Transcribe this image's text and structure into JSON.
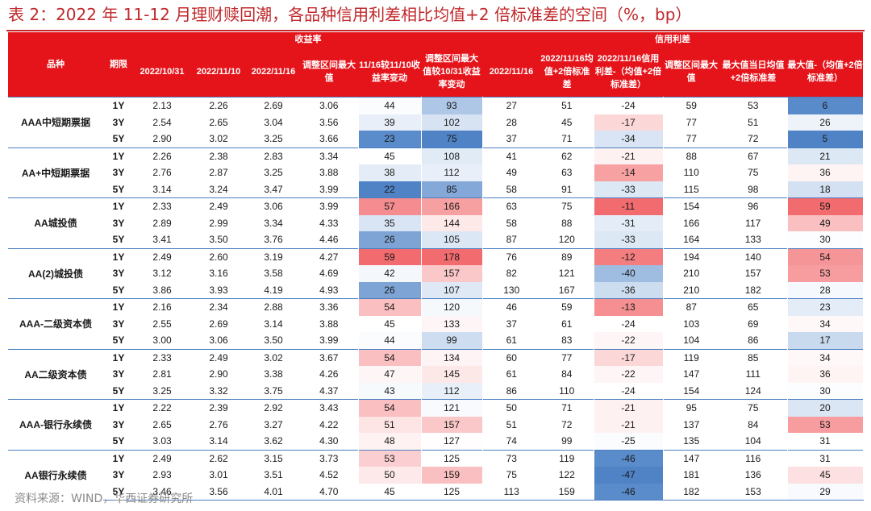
{
  "title": "表 2：2022 年 11-12 月理财赎回潮，各品种信用利差相比均值+2 倍标准差的空间（%，bp）",
  "source": "资料来源：WIND，华西证券研究所",
  "header": {
    "product": "品种",
    "term": "期限",
    "group_yield": "收益率",
    "group_spread": "信用利差",
    "cols": [
      "2022/10/31",
      "2022/11/10",
      "2022/11/16",
      "调整区间最大值",
      "11/16较11/10收益率变动",
      "调整区间最大值较10/31收益率变动",
      "2022/11/16",
      "2022/11/16均值+2倍标准差",
      "2022/11/16信用利差-（均值+2倍标准差）",
      "调整区间最大值",
      "最大值当日均值+2倍标准差",
      "最大值-（均值+2倍标准差）"
    ]
  },
  "heat_colors": {
    "red_strong": "#f26b6e",
    "red_mid": "#f9a2a4",
    "red_light": "#fde0e1",
    "blue_strong": "#4f83c6",
    "blue_mid": "#9ebce2",
    "blue_light": "#d3e1f2",
    "grid_line": "#4a7fc1",
    "header_red": "#e5141b"
  },
  "groups": [
    {
      "name": "AAA中短期票据",
      "rows": [
        {
          "term": "1Y",
          "v": [
            "2.13",
            "2.26",
            "2.69",
            "3.06",
            "44",
            "93",
            "27",
            "51",
            "-24",
            "59",
            "53",
            "6"
          ]
        },
        {
          "term": "3Y",
          "v": [
            "2.54",
            "2.65",
            "3.04",
            "3.56",
            "39",
            "102",
            "28",
            "45",
            "-17",
            "77",
            "51",
            "26"
          ]
        },
        {
          "term": "5Y",
          "v": [
            "2.90",
            "3.02",
            "3.25",
            "3.66",
            "23",
            "75",
            "37",
            "71",
            "-34",
            "77",
            "72",
            "5"
          ]
        }
      ]
    },
    {
      "name": "AA+中短期票据",
      "rows": [
        {
          "term": "1Y",
          "v": [
            "2.26",
            "2.38",
            "2.83",
            "3.34",
            "45",
            "108",
            "41",
            "62",
            "-21",
            "88",
            "67",
            "21"
          ]
        },
        {
          "term": "3Y",
          "v": [
            "2.76",
            "2.87",
            "3.25",
            "3.88",
            "38",
            "112",
            "49",
            "63",
            "-14",
            "110",
            "75",
            "36"
          ]
        },
        {
          "term": "5Y",
          "v": [
            "3.14",
            "3.24",
            "3.47",
            "3.99",
            "22",
            "85",
            "58",
            "91",
            "-33",
            "115",
            "98",
            "18"
          ]
        }
      ]
    },
    {
      "name": "AA城投债",
      "rows": [
        {
          "term": "1Y",
          "v": [
            "2.33",
            "2.49",
            "3.06",
            "3.99",
            "57",
            "166",
            "63",
            "75",
            "-11",
            "154",
            "96",
            "59"
          ]
        },
        {
          "term": "3Y",
          "v": [
            "2.89",
            "2.99",
            "3.34",
            "4.33",
            "35",
            "144",
            "58",
            "88",
            "-31",
            "166",
            "117",
            "49"
          ]
        },
        {
          "term": "5Y",
          "v": [
            "3.41",
            "3.50",
            "3.76",
            "4.46",
            "26",
            "105",
            "87",
            "120",
            "-33",
            "164",
            "133",
            "30"
          ]
        }
      ]
    },
    {
      "name": "AA(2)城投债",
      "rows": [
        {
          "term": "1Y",
          "v": [
            "2.49",
            "2.60",
            "3.19",
            "4.27",
            "59",
            "178",
            "76",
            "89",
            "-12",
            "194",
            "140",
            "54"
          ]
        },
        {
          "term": "3Y",
          "v": [
            "3.12",
            "3.16",
            "3.58",
            "4.69",
            "42",
            "157",
            "82",
            "121",
            "-40",
            "210",
            "157",
            "53"
          ]
        },
        {
          "term": "5Y",
          "v": [
            "3.86",
            "3.93",
            "4.19",
            "4.93",
            "26",
            "107",
            "130",
            "167",
            "-36",
            "210",
            "182",
            "28"
          ]
        }
      ]
    },
    {
      "name": "AAA-二级资本债",
      "rows": [
        {
          "term": "1Y",
          "v": [
            "2.16",
            "2.34",
            "2.88",
            "3.36",
            "54",
            "120",
            "46",
            "59",
            "-13",
            "87",
            "65",
            "23"
          ]
        },
        {
          "term": "3Y",
          "v": [
            "2.55",
            "2.69",
            "3.14",
            "3.88",
            "45",
            "133",
            "37",
            "61",
            "-24",
            "103",
            "69",
            "34"
          ]
        },
        {
          "term": "5Y",
          "v": [
            "3.00",
            "3.06",
            "3.50",
            "3.99",
            "44",
            "99",
            "61",
            "83",
            "-22",
            "104",
            "86",
            "17"
          ]
        }
      ]
    },
    {
      "name": "AA二级资本债",
      "rows": [
        {
          "term": "1Y",
          "v": [
            "2.33",
            "2.49",
            "3.02",
            "3.67",
            "54",
            "134",
            "60",
            "77",
            "-17",
            "119",
            "85",
            "34"
          ]
        },
        {
          "term": "3Y",
          "v": [
            "2.81",
            "2.90",
            "3.38",
            "4.26",
            "47",
            "145",
            "61",
            "84",
            "-22",
            "147",
            "111",
            "36"
          ]
        },
        {
          "term": "5Y",
          "v": [
            "3.25",
            "3.32",
            "3.75",
            "4.37",
            "43",
            "112",
            "86",
            "110",
            "-24",
            "154",
            "124",
            "30"
          ]
        }
      ]
    },
    {
      "name": "AAA-银行永续债",
      "rows": [
        {
          "term": "1Y",
          "v": [
            "2.22",
            "2.39",
            "2.92",
            "3.43",
            "54",
            "121",
            "50",
            "71",
            "-21",
            "95",
            "75",
            "20"
          ]
        },
        {
          "term": "3Y",
          "v": [
            "2.65",
            "2.76",
            "3.27",
            "4.22",
            "51",
            "157",
            "51",
            "72",
            "-21",
            "137",
            "84",
            "53"
          ]
        },
        {
          "term": "5Y",
          "v": [
            "3.03",
            "3.14",
            "3.62",
            "4.30",
            "48",
            "127",
            "74",
            "99",
            "-25",
            "135",
            "104",
            "31"
          ]
        }
      ]
    },
    {
      "name": "AA银行永续债",
      "rows": [
        {
          "term": "1Y",
          "v": [
            "2.49",
            "2.62",
            "3.15",
            "3.73",
            "53",
            "125",
            "73",
            "119",
            "-46",
            "147",
            "116",
            "31"
          ]
        },
        {
          "term": "3Y",
          "v": [
            "2.93",
            "3.01",
            "3.51",
            "4.52",
            "50",
            "159",
            "75",
            "122",
            "-47",
            "181",
            "136",
            "45"
          ]
        },
        {
          "term": "5Y",
          "v": [
            "3.46",
            "3.56",
            "4.01",
            "4.70",
            "45",
            "125",
            "113",
            "159",
            "-46",
            "182",
            "153",
            "29"
          ]
        }
      ]
    }
  ]
}
